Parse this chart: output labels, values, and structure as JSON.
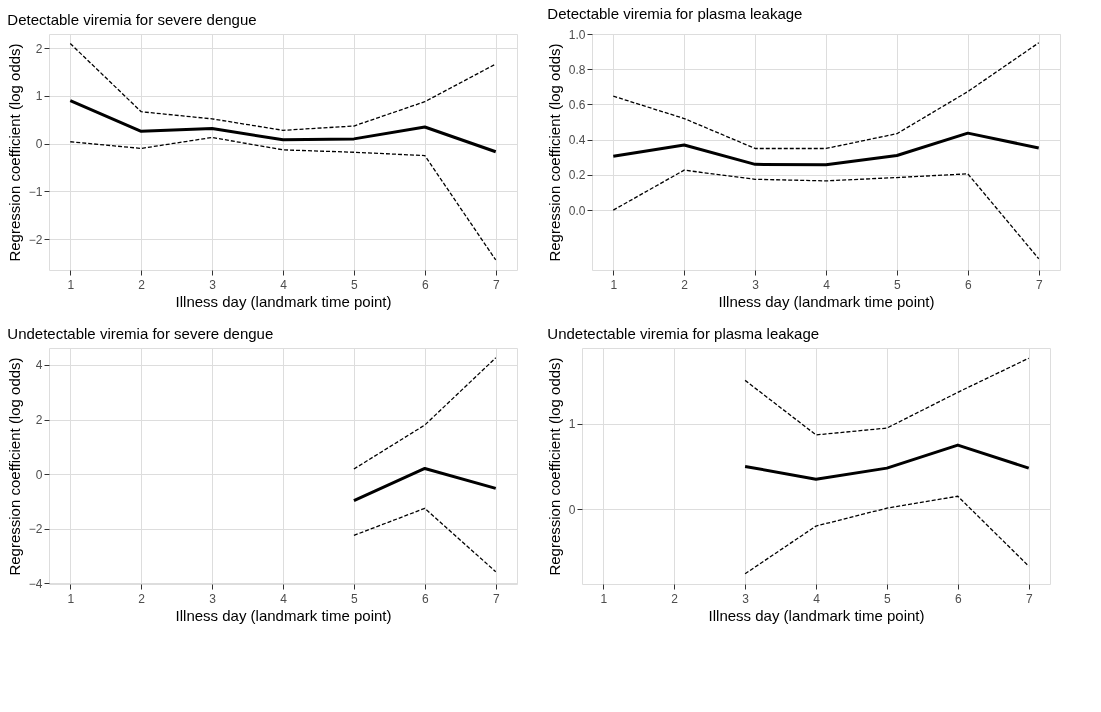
{
  "chart_data": [
    {
      "type": "line",
      "title": "Detectable viremia for severe dengue",
      "xlabel": "Illness day (landmark time point)",
      "ylabel": "Regression coefficient (log odds)",
      "xlim": [
        0.7,
        7.3
      ],
      "xticks": [
        1,
        2,
        3,
        4,
        5,
        6,
        7
      ],
      "ylim": [
        -2.65,
        2.3
      ],
      "yticks": [
        -2,
        -1,
        0,
        1,
        2
      ],
      "grid": true,
      "series": [
        {
          "color": "#000000",
          "line_style": "solid",
          "x": [
            1,
            2,
            3,
            4,
            5,
            6,
            7
          ],
          "values": [
            0.9,
            0.26,
            0.32,
            0.08,
            0.1,
            0.35,
            -0.17
          ]
        },
        {
          "color": "#000000",
          "line_style": "dashed",
          "x": [
            1,
            2,
            3,
            4,
            5,
            6,
            7
          ],
          "values": [
            2.1,
            0.67,
            0.52,
            0.28,
            0.37,
            0.88,
            1.67
          ]
        },
        {
          "color": "#000000",
          "line_style": "dashed",
          "x": [
            1,
            2,
            3,
            4,
            5,
            6,
            7
          ],
          "values": [
            0.04,
            -0.1,
            0.13,
            -0.13,
            -0.18,
            -0.25,
            -2.44
          ]
        }
      ]
    },
    {
      "type": "line",
      "title": "Detectable viremia for plasma leakage",
      "xlabel": "Illness day (landmark time point)",
      "ylabel": "Regression coefficient (log odds)",
      "xlim": [
        0.7,
        7.3
      ],
      "xticks": [
        1,
        2,
        3,
        4,
        5,
        6,
        7
      ],
      "ylim": [
        -0.34,
        1.0
      ],
      "yticks": [
        {
          "value": 0,
          "label": "0.0"
        },
        0.2,
        0.4,
        0.6,
        0.8,
        {
          "value": 1,
          "label": "1.0"
        }
      ],
      "grid": true,
      "series": [
        {
          "color": "#000000",
          "line_style": "solid",
          "x": [
            1,
            2,
            3,
            4,
            5,
            6,
            7
          ],
          "values": [
            0.306,
            0.37,
            0.26,
            0.257,
            0.31,
            0.437,
            0.353
          ]
        },
        {
          "color": "#000000",
          "line_style": "dashed",
          "x": [
            1,
            2,
            3,
            4,
            5,
            6,
            7
          ],
          "values": [
            0.647,
            0.52,
            0.35,
            0.35,
            0.434,
            0.673,
            0.95
          ]
        },
        {
          "color": "#000000",
          "line_style": "dashed",
          "x": [
            1,
            2,
            3,
            4,
            5,
            6,
            7
          ],
          "values": [
            0.0,
            0.227,
            0.175,
            0.166,
            0.185,
            0.206,
            -0.276
          ]
        }
      ]
    },
    {
      "type": "line",
      "title": "Undetectable viremia for severe dengue",
      "xlabel": "Illness day (landmark time point)",
      "ylabel": "Regression coefficient (log odds)",
      "xlim": [
        0.7,
        7.3
      ],
      "xticks": [
        1,
        2,
        3,
        4,
        5,
        6,
        7
      ],
      "ylim": [
        -4.02,
        4.62
      ],
      "yticks": [
        -4,
        -2,
        0,
        2,
        4
      ],
      "grid": true,
      "series": [
        {
          "color": "#000000",
          "line_style": "solid",
          "x": [
            5,
            6,
            7
          ],
          "values": [
            -0.97,
            0.21,
            -0.52
          ]
        },
        {
          "color": "#000000",
          "line_style": "dashed",
          "x": [
            5,
            6,
            7
          ],
          "values": [
            0.19,
            1.8,
            4.26
          ]
        },
        {
          "color": "#000000",
          "line_style": "dashed",
          "x": [
            5,
            6,
            7
          ],
          "values": [
            -2.24,
            -1.25,
            -3.57
          ]
        }
      ]
    },
    {
      "type": "line",
      "title": "Undetectable viremia for plasma leakage",
      "xlabel": "Illness day (landmark time point)",
      "ylabel": "Regression coefficient (log odds)",
      "xlim": [
        0.7,
        7.3
      ],
      "xticks": [
        1,
        2,
        3,
        4,
        5,
        6,
        7
      ],
      "ylim": [
        -0.88,
        1.89
      ],
      "yticks": [
        0,
        1
      ],
      "grid": true,
      "series": [
        {
          "color": "#000000",
          "line_style": "solid",
          "x": [
            3,
            4,
            5,
            6,
            7
          ],
          "values": [
            0.5,
            0.35,
            0.48,
            0.75,
            0.48
          ]
        },
        {
          "color": "#000000",
          "line_style": "dashed",
          "x": [
            3,
            4,
            5,
            6,
            7
          ],
          "values": [
            1.51,
            0.87,
            0.95,
            1.37,
            1.77
          ]
        },
        {
          "color": "#000000",
          "line_style": "dashed",
          "x": [
            3,
            4,
            5,
            6,
            7
          ],
          "values": [
            -0.76,
            -0.2,
            0.01,
            0.15,
            -0.67
          ]
        }
      ]
    }
  ]
}
